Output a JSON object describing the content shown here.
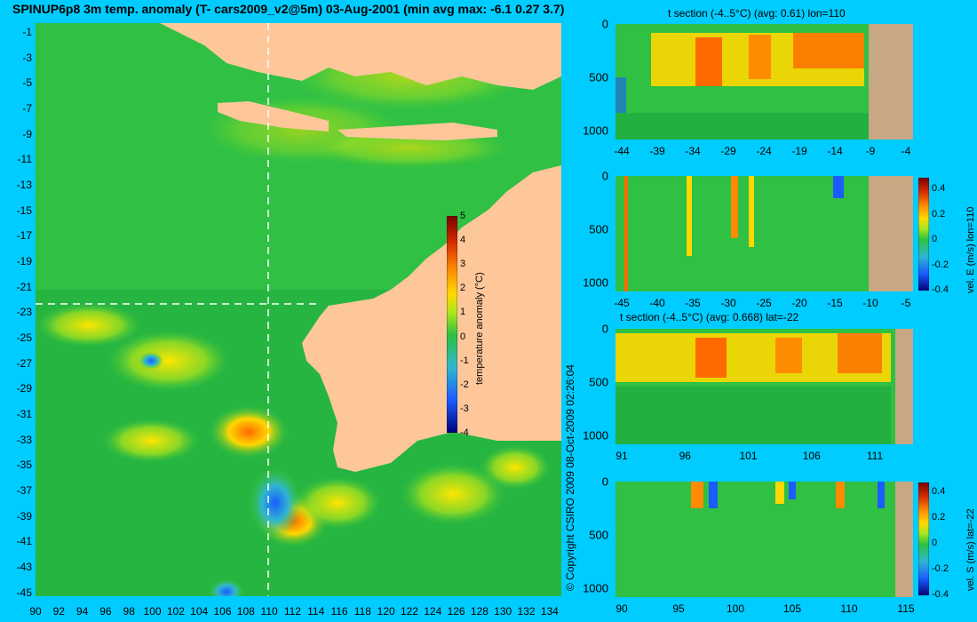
{
  "title": "SPINUP6p8 3m temp. anomaly (T- cars2009_v2@5m) 03-Aug-2001 (min avg max: -6.1 0.27 3.7)",
  "copyright": "© Copyright CSIRO 2009   08-Oct-2009 02:26:04",
  "colors": {
    "background": "#00ccff",
    "land": "#fdc79a",
    "section_land": "#c8a882"
  },
  "chart_data": [
    {
      "id": "map",
      "type": "heatmap",
      "x_ticks": [
        "90",
        "92",
        "94",
        "96",
        "98",
        "100",
        "102",
        "104",
        "106",
        "108",
        "110",
        "112",
        "114",
        "116",
        "118",
        "120",
        "122",
        "124",
        "126",
        "128",
        "130",
        "132",
        "134"
      ],
      "y_ticks": [
        "-1",
        "-3",
        "-5",
        "-7",
        "-9",
        "-11",
        "-13",
        "-15",
        "-17",
        "-19",
        "-21",
        "-23",
        "-25",
        "-27",
        "-29",
        "-31",
        "-33",
        "-35",
        "-37",
        "-39",
        "-41",
        "-43",
        "-45"
      ],
      "xlim": [
        90,
        135
      ],
      "ylim": [
        -45,
        0
      ],
      "colorbar": {
        "label": "temperature anomaly (°C)",
        "ticks": [
          "5",
          "4",
          "3",
          "2",
          "1",
          "0",
          "-1",
          "-2",
          "-3",
          "-4"
        ],
        "range": [
          -4,
          5
        ]
      },
      "crosshair": {
        "lon": 110,
        "lat": -22
      }
    },
    {
      "id": "panel1",
      "type": "heatmap",
      "title": "t section (-4..5°C) (avg: 0.61) lon=110",
      "x_ticks": [
        "-44",
        "-39",
        "-34",
        "-29",
        "-24",
        "-19",
        "-14",
        "-9",
        "-4"
      ],
      "y_ticks": [
        "0",
        "500",
        "1000"
      ]
    },
    {
      "id": "panel2",
      "type": "heatmap",
      "x_ticks": [
        "-45",
        "-40",
        "-35",
        "-30",
        "-25",
        "-20",
        "-15",
        "-10",
        "-5"
      ],
      "y_ticks": [
        "0",
        "500",
        "1000"
      ],
      "colorbar": {
        "label": "vel. E (m/s) lon=110",
        "ticks": [
          "0.4",
          "0.2",
          "0",
          "-0.2",
          "-0.4"
        ]
      }
    },
    {
      "id": "panel3",
      "type": "heatmap",
      "title": "t section (-4..5°C) (avg: 0.668) lat=-22",
      "x_ticks": [
        "91",
        "96",
        "101",
        "106",
        "111"
      ],
      "y_ticks": [
        "0",
        "500",
        "1000"
      ]
    },
    {
      "id": "panel4",
      "type": "heatmap",
      "x_ticks": [
        "90",
        "95",
        "100",
        "105",
        "110",
        "115"
      ],
      "y_ticks": [
        "0",
        "500",
        "1000"
      ],
      "colorbar": {
        "label": "vel. S (m/s) lat=-22",
        "ticks": [
          "0.4",
          "0.2",
          "0",
          "-0.2",
          "-0.4"
        ]
      }
    }
  ]
}
